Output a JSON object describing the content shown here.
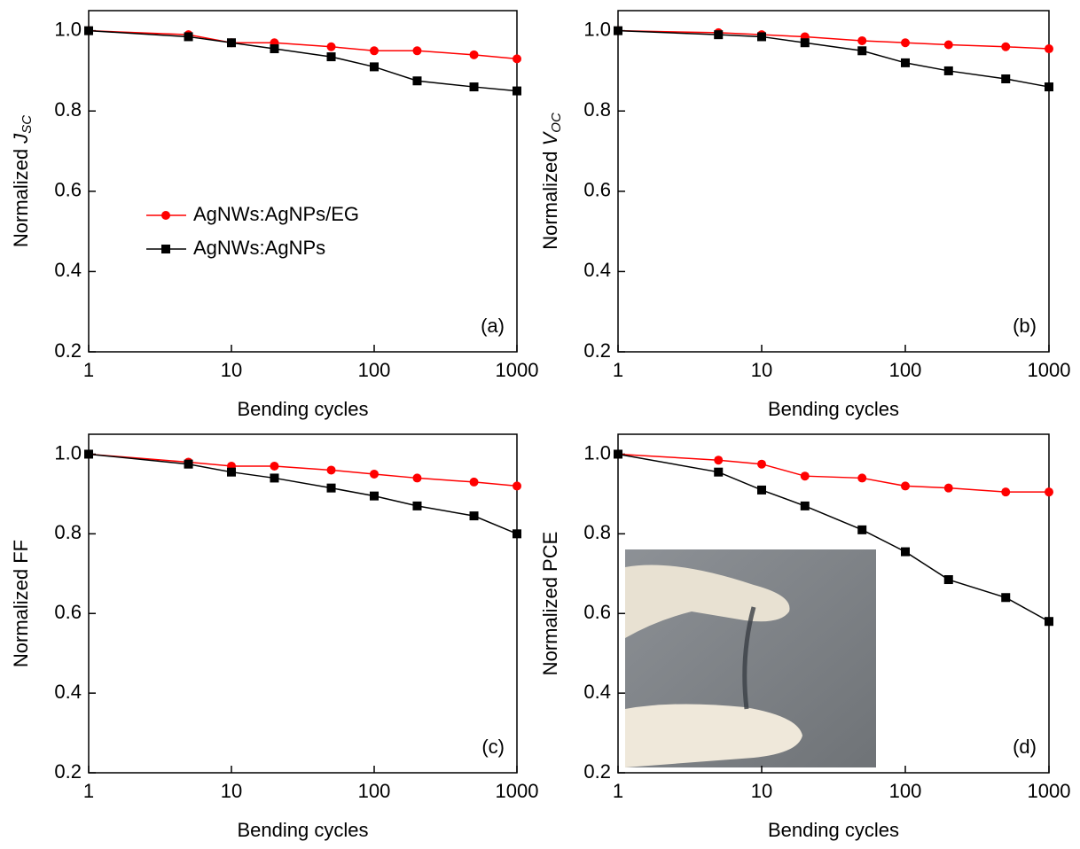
{
  "chart_data": [
    {
      "type": "line",
      "xlabel": "Bending cycles",
      "ylabel": "Normalized ",
      "ylabel_var": "J",
      "ylabel_sub": "SC",
      "annotation": "(a)",
      "x": [
        1,
        5,
        10,
        20,
        50,
        100,
        200,
        500,
        1000
      ],
      "xlim": [
        1,
        1000
      ],
      "xticks": [
        1,
        10,
        100,
        1000
      ],
      "xscale": "log",
      "ylim": [
        0.2,
        1.05
      ],
      "yticks": [
        0.2,
        0.4,
        0.6,
        0.8,
        {
          "value": 1,
          "label": "1.0"
        }
      ],
      "legend": "center-left",
      "series": [
        {
          "name": "AgNWs:AgNPs/EG",
          "color": "#ff0000",
          "marker": "circle",
          "values": [
            1.0,
            0.99,
            0.97,
            0.97,
            0.96,
            0.95,
            0.95,
            0.94,
            0.93
          ]
        },
        {
          "name": "AgNWs:AgNPs",
          "color": "#000000",
          "marker": "square",
          "values": [
            1.0,
            0.985,
            0.97,
            0.955,
            0.935,
            0.91,
            0.875,
            0.86,
            0.85
          ]
        }
      ]
    },
    {
      "type": "line",
      "xlabel": "Bending cycles",
      "ylabel": "Normalized ",
      "ylabel_var": "V",
      "ylabel_sub": "OC",
      "annotation": "(b)",
      "x": [
        1,
        5,
        10,
        20,
        50,
        100,
        200,
        500,
        1000
      ],
      "xlim": [
        1,
        1000
      ],
      "xticks": [
        1,
        10,
        100,
        1000
      ],
      "xscale": "log",
      "ylim": [
        0.2,
        1.05
      ],
      "yticks": [
        0.2,
        0.4,
        0.6,
        0.8,
        {
          "value": 1,
          "label": "1.0"
        }
      ],
      "series": [
        {
          "color": "#ff0000",
          "marker": "circle",
          "values": [
            1.0,
            0.995,
            0.99,
            0.985,
            0.975,
            0.97,
            0.965,
            0.96,
            0.955
          ]
        },
        {
          "color": "#000000",
          "marker": "square",
          "values": [
            1.0,
            0.99,
            0.985,
            0.97,
            0.95,
            0.92,
            0.9,
            0.88,
            0.86
          ]
        }
      ]
    },
    {
      "type": "line",
      "xlabel": "Bending cycles",
      "ylabel": "Normalized FF",
      "annotation": "(c)",
      "x": [
        1,
        5,
        10,
        20,
        50,
        100,
        200,
        500,
        1000
      ],
      "xlim": [
        1,
        1000
      ],
      "xticks": [
        1,
        10,
        100,
        1000
      ],
      "xscale": "log",
      "ylim": [
        0.2,
        1.05
      ],
      "yticks": [
        0.2,
        0.4,
        0.6,
        0.8,
        {
          "value": 1,
          "label": "1.0"
        }
      ],
      "series": [
        {
          "color": "#ff0000",
          "marker": "circle",
          "values": [
            1.0,
            0.98,
            0.97,
            0.97,
            0.96,
            0.95,
            0.94,
            0.93,
            0.92
          ]
        },
        {
          "color": "#000000",
          "marker": "square",
          "values": [
            1.0,
            0.975,
            0.955,
            0.94,
            0.915,
            0.895,
            0.87,
            0.845,
            0.8
          ]
        }
      ]
    },
    {
      "type": "line",
      "xlabel": "Bending cycles",
      "ylabel": "Normalized PCE",
      "annotation": "(d)",
      "x": [
        1,
        5,
        10,
        20,
        50,
        100,
        200,
        500,
        1000
      ],
      "xlim": [
        1,
        1000
      ],
      "xticks": [
        1,
        10,
        100,
        1000
      ],
      "xscale": "log",
      "ylim": [
        0.2,
        1.05
      ],
      "yticks": [
        0.2,
        0.4,
        0.6,
        0.8,
        {
          "value": 1,
          "label": "1.0"
        }
      ],
      "series": [
        {
          "color": "#ff0000",
          "marker": "circle",
          "values": [
            1.0,
            0.985,
            0.975,
            0.945,
            0.94,
            0.92,
            0.915,
            0.905,
            0.905
          ]
        },
        {
          "color": "#000000",
          "marker": "square",
          "values": [
            1.0,
            0.955,
            0.91,
            0.87,
            0.81,
            0.755,
            0.685,
            0.64,
            0.58
          ]
        }
      ]
    }
  ]
}
